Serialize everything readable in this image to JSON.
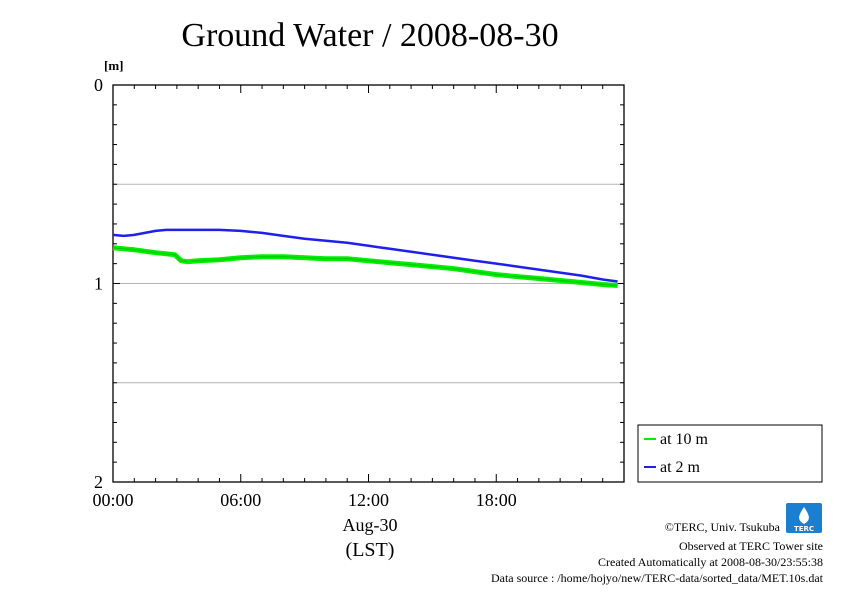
{
  "chart_data": {
    "type": "line",
    "title": "Ground Water / 2008-08-30",
    "unit_label": "[m]",
    "y_axis": {
      "ylim": [
        0,
        2
      ],
      "inverted": true,
      "ticks": [
        "0",
        "1",
        "2"
      ],
      "tick_values": [
        0,
        1,
        2
      ],
      "grid": [
        0.5,
        1.0,
        1.5
      ]
    },
    "x_axis": {
      "xlim_hours": [
        0,
        24
      ],
      "ticks": [
        "00:00",
        "06:00",
        "12:00",
        "18:00"
      ],
      "tick_hours": [
        0,
        6,
        12,
        18
      ],
      "date_label": "Aug-30",
      "tz_label": "(LST)"
    },
    "series": [
      {
        "name": "at 10 m",
        "color": "#00ee00",
        "x": [
          0,
          0.5,
          1,
          2,
          2.9,
          3.0,
          3.2,
          3.5,
          4,
          5,
          6,
          7,
          8,
          9,
          10,
          11,
          12,
          13,
          14,
          15,
          16,
          17,
          18,
          19,
          20,
          21,
          22,
          23,
          23.7
        ],
        "y": [
          0.82,
          0.825,
          0.83,
          0.845,
          0.855,
          0.865,
          0.885,
          0.89,
          0.885,
          0.88,
          0.87,
          0.865,
          0.865,
          0.87,
          0.875,
          0.875,
          0.885,
          0.895,
          0.905,
          0.915,
          0.925,
          0.94,
          0.955,
          0.965,
          0.975,
          0.985,
          0.995,
          1.005,
          1.01
        ]
      },
      {
        "name": "at 2 m",
        "color": "#1f1fee",
        "x": [
          0,
          0.5,
          1,
          1.5,
          2,
          2.5,
          3,
          4,
          5,
          6,
          7,
          8,
          9,
          10,
          11,
          12,
          13,
          14,
          15,
          16,
          17,
          18,
          19,
          20,
          21,
          22,
          23,
          23.7
        ],
        "y": [
          0.755,
          0.76,
          0.755,
          0.745,
          0.735,
          0.73,
          0.73,
          0.73,
          0.73,
          0.735,
          0.745,
          0.76,
          0.775,
          0.785,
          0.795,
          0.81,
          0.825,
          0.84,
          0.855,
          0.87,
          0.885,
          0.9,
          0.915,
          0.93,
          0.945,
          0.96,
          0.98,
          0.99
        ]
      }
    ],
    "legend_position": "bottom-right"
  },
  "footer": {
    "copyright": "©TERC, Univ. Tsukuba",
    "observed": "Observed at TERC Tower site",
    "created": "Created Automatically at 2008-08-30/23:55:38",
    "source": "Data source : /home/hojyo/new/TERC-data/sorted_data/MET.10s.dat",
    "logo_text": "TERC"
  }
}
